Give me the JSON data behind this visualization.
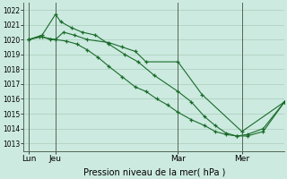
{
  "background_color": "#cceae0",
  "grid_color": "#aaccbb",
  "line_color": "#1a6b2a",
  "ylim": [
    1012.5,
    1022.5
  ],
  "yticks": [
    1013,
    1014,
    1015,
    1016,
    1017,
    1018,
    1019,
    1020,
    1021,
    1022
  ],
  "xlabel": "Pression niveau de la mer( hPa )",
  "xtick_labels": [
    "Lun",
    "Jeu",
    "Mar",
    "Mer"
  ],
  "xtick_positions": [
    0,
    10,
    56,
    80
  ],
  "vline_positions": [
    0,
    10,
    56,
    80
  ],
  "xlim": [
    -2,
    96
  ],
  "line1_x": [
    0,
    4,
    10,
    13,
    17,
    22,
    30,
    35,
    40,
    44,
    56,
    65,
    80,
    96
  ],
  "line1_y": [
    1020.0,
    1020.2,
    1020.0,
    1020.5,
    1020.3,
    1020.0,
    1019.8,
    1019.5,
    1019.2,
    1018.5,
    1018.5,
    1016.3,
    1013.8,
    1015.8
  ],
  "line2_x": [
    0,
    5,
    10,
    12,
    16,
    20,
    25,
    30,
    36,
    41,
    47,
    56,
    61,
    66,
    70,
    74,
    78,
    82,
    88,
    96
  ],
  "line2_y": [
    1020.0,
    1020.3,
    1021.7,
    1021.2,
    1020.8,
    1020.5,
    1020.3,
    1019.7,
    1019.0,
    1018.5,
    1017.6,
    1016.5,
    1015.8,
    1014.8,
    1014.2,
    1013.7,
    1013.5,
    1013.6,
    1014.0,
    1015.8
  ],
  "line3_x": [
    0,
    5,
    8,
    10,
    14,
    18,
    22,
    26,
    30,
    35,
    40,
    44,
    48,
    52,
    56,
    61,
    66,
    70,
    74,
    78,
    82,
    88,
    96
  ],
  "line3_y": [
    1020.0,
    1020.2,
    1020.0,
    1020.0,
    1019.9,
    1019.7,
    1019.3,
    1018.8,
    1018.2,
    1017.5,
    1016.8,
    1016.5,
    1016.0,
    1015.6,
    1015.1,
    1014.6,
    1014.2,
    1013.8,
    1013.6,
    1013.5,
    1013.5,
    1013.8,
    1015.8
  ]
}
